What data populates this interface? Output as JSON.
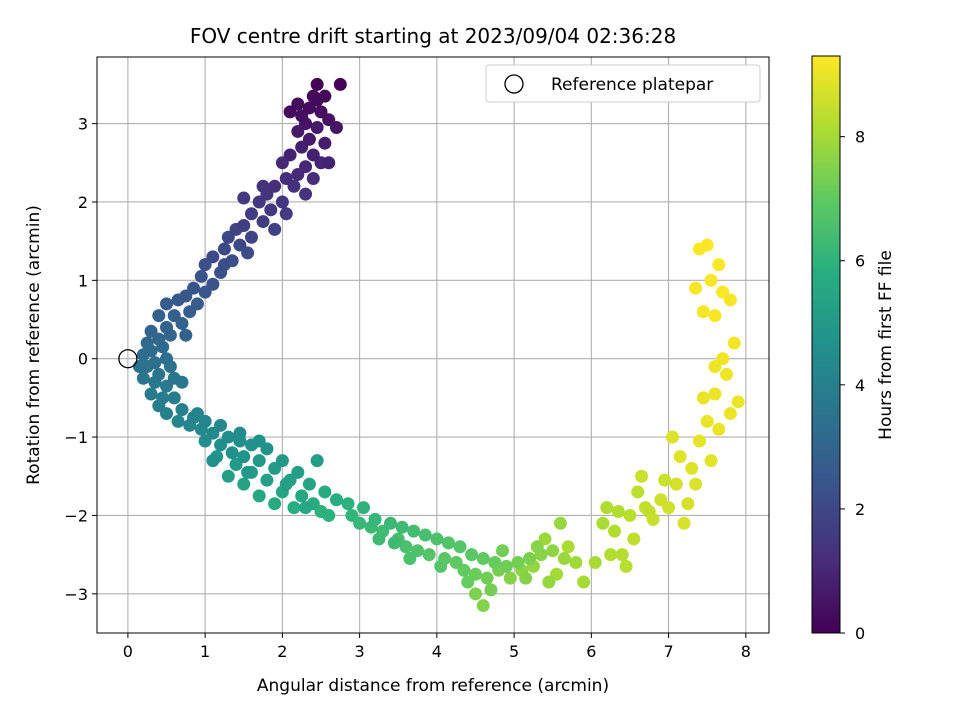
{
  "chart_data": {
    "type": "scatter",
    "title": "FOV centre drift starting at 2023/09/04 02:36:28",
    "xlabel": "Angular distance from reference (arcmin)",
    "ylabel": "Rotation from reference (arcmin)",
    "colorbar_label": "Hours from first FF file",
    "xlim": [
      -0.4,
      8.3
    ],
    "ylim": [
      -3.5,
      3.85
    ],
    "colorbar_range": [
      0,
      9.3
    ],
    "x_ticks": [
      0,
      1,
      2,
      3,
      4,
      5,
      6,
      7,
      8
    ],
    "y_ticks": [
      -3,
      -2,
      -1,
      0,
      1,
      2,
      3
    ],
    "colorbar_ticks": [
      0,
      2,
      4,
      6,
      8
    ],
    "grid": true,
    "colormap": "viridis",
    "legend": {
      "position": "top-right",
      "entries": [
        "Reference platepar"
      ]
    },
    "reference_point": {
      "x": 0,
      "y": 0,
      "marker": "open-circle",
      "color": "#000000"
    },
    "series": [
      {
        "points": [
          [
            2.75,
            3.5,
            0.05
          ],
          [
            2.45,
            3.5,
            0.1
          ],
          [
            2.4,
            3.35,
            0.15
          ],
          [
            2.55,
            3.35,
            0.2
          ],
          [
            2.2,
            3.25,
            0.25
          ],
          [
            2.35,
            3.2,
            0.3
          ],
          [
            2.5,
            3.15,
            0.35
          ],
          [
            2.25,
            3.1,
            0.4
          ],
          [
            2.6,
            3.05,
            0.45
          ],
          [
            2.3,
            3.0,
            0.5
          ],
          [
            2.7,
            2.95,
            0.55
          ],
          [
            2.45,
            2.95,
            0.6
          ],
          [
            2.2,
            2.9,
            0.65
          ],
          [
            2.35,
            2.8,
            0.7
          ],
          [
            2.55,
            2.75,
            0.75
          ],
          [
            2.25,
            2.7,
            0.8
          ],
          [
            2.4,
            2.6,
            0.85
          ],
          [
            2.1,
            2.6,
            0.9
          ],
          [
            2.5,
            2.5,
            0.95
          ],
          [
            2.3,
            2.45,
            1.0
          ],
          [
            2.0,
            2.5,
            1.05
          ],
          [
            2.2,
            2.35,
            1.1
          ],
          [
            2.4,
            2.3,
            1.15
          ],
          [
            2.05,
            2.3,
            1.2
          ],
          [
            1.9,
            2.2,
            1.25
          ],
          [
            2.15,
            2.2,
            1.3
          ],
          [
            2.3,
            2.1,
            1.35
          ],
          [
            1.8,
            2.1,
            1.4
          ],
          [
            2.0,
            2.0,
            1.45
          ],
          [
            1.7,
            2.0,
            1.5
          ],
          [
            1.85,
            1.9,
            1.55
          ],
          [
            2.05,
            1.85,
            1.6
          ],
          [
            1.6,
            1.85,
            1.65
          ],
          [
            1.75,
            1.75,
            1.7
          ],
          [
            1.5,
            1.7,
            1.75
          ],
          [
            1.9,
            1.65,
            1.8
          ],
          [
            1.4,
            1.65,
            1.85
          ],
          [
            1.6,
            1.55,
            1.9
          ],
          [
            1.3,
            1.55,
            1.95
          ],
          [
            1.45,
            1.45,
            2.0
          ],
          [
            1.25,
            1.4,
            2.05
          ],
          [
            1.55,
            1.35,
            2.1
          ],
          [
            1.1,
            1.3,
            2.15
          ],
          [
            1.35,
            1.25,
            2.2
          ],
          [
            1.0,
            1.2,
            2.25
          ],
          [
            1.2,
            1.1,
            2.3
          ],
          [
            0.95,
            1.05,
            2.35
          ],
          [
            1.1,
            0.95,
            2.4
          ],
          [
            0.85,
            0.9,
            2.45
          ],
          [
            1.0,
            0.85,
            2.5
          ],
          [
            0.75,
            0.8,
            2.55
          ],
          [
            0.65,
            0.75,
            2.6
          ],
          [
            0.9,
            0.7,
            2.65
          ],
          [
            0.5,
            0.7,
            2.7
          ],
          [
            0.8,
            0.6,
            2.75
          ],
          [
            0.6,
            0.55,
            2.8
          ],
          [
            0.4,
            0.55,
            2.85
          ],
          [
            0.7,
            0.45,
            2.9
          ],
          [
            0.5,
            0.4,
            2.95
          ],
          [
            0.3,
            0.35,
            3.0
          ],
          [
            0.55,
            0.3,
            3.05
          ],
          [
            0.4,
            0.25,
            3.1
          ],
          [
            0.25,
            0.2,
            3.15
          ],
          [
            0.45,
            0.15,
            3.2
          ],
          [
            0.3,
            0.1,
            3.25
          ],
          [
            0.2,
            0.05,
            3.3
          ],
          [
            0.5,
            0.0,
            3.35
          ],
          [
            0.35,
            -0.05,
            3.4
          ],
          [
            0.25,
            -0.1,
            3.45
          ],
          [
            0.55,
            -0.1,
            3.5
          ],
          [
            0.4,
            -0.2,
            3.55
          ],
          [
            0.2,
            -0.25,
            3.6
          ],
          [
            0.6,
            -0.25,
            3.65
          ],
          [
            0.35,
            -0.3,
            3.7
          ],
          [
            0.5,
            -0.35,
            3.75
          ],
          [
            0.3,
            -0.45,
            3.8
          ],
          [
            0.45,
            -0.5,
            3.85
          ],
          [
            0.6,
            -0.5,
            3.9
          ],
          [
            0.4,
            -0.6,
            3.95
          ],
          [
            0.7,
            -0.65,
            4.0
          ],
          [
            0.5,
            -0.7,
            4.05
          ],
          [
            0.85,
            -0.75,
            4.1
          ],
          [
            0.65,
            -0.8,
            4.15
          ],
          [
            1.0,
            -0.8,
            4.2
          ],
          [
            0.8,
            -0.85,
            4.25
          ],
          [
            1.2,
            -0.85,
            4.3
          ],
          [
            0.95,
            -0.9,
            4.35
          ],
          [
            1.1,
            -0.95,
            4.4
          ],
          [
            1.3,
            -1.0,
            4.45
          ],
          [
            1.0,
            -1.05,
            4.5
          ],
          [
            1.45,
            -1.05,
            4.55
          ],
          [
            1.2,
            -1.1,
            4.6
          ],
          [
            1.6,
            -1.1,
            4.65
          ],
          [
            1.35,
            -1.2,
            4.7
          ],
          [
            1.8,
            -1.15,
            4.75
          ],
          [
            1.5,
            -1.25,
            4.8
          ],
          [
            1.15,
            -1.25,
            4.85
          ],
          [
            1.7,
            -1.3,
            4.9
          ],
          [
            2.0,
            -1.3,
            4.95
          ],
          [
            1.4,
            -1.35,
            5.0
          ],
          [
            1.9,
            -1.4,
            5.05
          ],
          [
            1.6,
            -1.45,
            5.1
          ],
          [
            2.2,
            -1.45,
            5.15
          ],
          [
            1.3,
            -1.5,
            5.2
          ],
          [
            1.8,
            -1.55,
            5.25
          ],
          [
            2.1,
            -1.55,
            5.3
          ],
          [
            1.5,
            -1.6,
            5.35
          ],
          [
            2.35,
            -1.6,
            5.4
          ],
          [
            2.0,
            -1.7,
            5.45
          ],
          [
            1.7,
            -1.75,
            5.5
          ],
          [
            2.25,
            -1.75,
            5.55
          ],
          [
            2.55,
            -1.7,
            5.6
          ],
          [
            1.9,
            -1.85,
            5.65
          ],
          [
            2.4,
            -1.85,
            5.7
          ],
          [
            2.7,
            -1.8,
            5.75
          ],
          [
            2.15,
            -1.9,
            5.8
          ],
          [
            2.85,
            -1.85,
            5.9
          ],
          [
            2.5,
            -1.95,
            5.95
          ],
          [
            3.05,
            -1.9,
            6.0
          ],
          [
            2.9,
            -2.0,
            6.05
          ],
          [
            3.2,
            -2.05,
            6.1
          ],
          [
            3.0,
            -2.1,
            6.15
          ],
          [
            3.4,
            -2.1,
            6.2
          ],
          [
            3.15,
            -2.15,
            6.25
          ],
          [
            3.55,
            -2.15,
            6.3
          ],
          [
            3.3,
            -2.2,
            6.35
          ],
          [
            3.7,
            -2.2,
            6.4
          ],
          [
            3.5,
            -2.3,
            6.45
          ],
          [
            3.85,
            -2.25,
            6.5
          ],
          [
            3.6,
            -2.4,
            6.55
          ],
          [
            4.0,
            -2.3,
            6.6
          ],
          [
            3.75,
            -2.45,
            6.65
          ],
          [
            4.15,
            -2.35,
            6.7
          ],
          [
            3.9,
            -2.5,
            6.75
          ],
          [
            4.3,
            -2.4,
            6.8
          ],
          [
            4.1,
            -2.55,
            6.85
          ],
          [
            4.45,
            -2.5,
            6.9
          ],
          [
            4.25,
            -2.6,
            6.95
          ],
          [
            4.6,
            -2.55,
            7.0
          ],
          [
            4.35,
            -2.7,
            7.05
          ],
          [
            4.75,
            -2.6,
            7.1
          ],
          [
            4.5,
            -2.75,
            7.15
          ],
          [
            4.9,
            -2.65,
            7.2
          ],
          [
            4.65,
            -2.8,
            7.25
          ],
          [
            5.05,
            -2.6,
            7.3
          ],
          [
            4.8,
            -2.7,
            7.35
          ],
          [
            5.2,
            -2.55,
            7.4
          ],
          [
            4.5,
            -3.0,
            7.45
          ],
          [
            4.6,
            -3.15,
            7.5
          ],
          [
            4.95,
            -2.8,
            7.55
          ],
          [
            5.35,
            -2.5,
            7.6
          ],
          [
            5.1,
            -2.7,
            7.65
          ],
          [
            5.5,
            -2.45,
            7.7
          ],
          [
            5.25,
            -2.65,
            7.75
          ],
          [
            5.45,
            -2.85,
            7.8
          ],
          [
            5.65,
            -2.55,
            7.85
          ],
          [
            5.4,
            -2.3,
            7.9
          ],
          [
            5.8,
            -2.6,
            7.95
          ],
          [
            5.55,
            -2.75,
            8.0
          ],
          [
            5.9,
            -2.85,
            8.05
          ],
          [
            5.7,
            -2.4,
            8.1
          ],
          [
            6.2,
            -1.9,
            8.15
          ],
          [
            6.3,
            -2.2,
            8.2
          ],
          [
            6.4,
            -2.5,
            8.25
          ],
          [
            6.5,
            -2.0,
            8.3
          ],
          [
            6.6,
            -1.7,
            8.35
          ],
          [
            6.55,
            -2.3,
            8.4
          ],
          [
            6.7,
            -1.9,
            8.45
          ],
          [
            6.8,
            -2.05,
            8.5
          ],
          [
            6.65,
            -1.5,
            8.55
          ],
          [
            6.9,
            -1.8,
            8.6
          ],
          [
            7.0,
            -1.9,
            8.65
          ],
          [
            7.1,
            -1.6,
            8.7
          ],
          [
            7.2,
            -2.1,
            8.75
          ],
          [
            7.05,
            -1.0,
            8.8
          ],
          [
            7.3,
            -1.4,
            8.85
          ],
          [
            7.15,
            -1.25,
            8.9
          ],
          [
            7.4,
            -1.05,
            8.95
          ],
          [
            7.5,
            -0.8,
            9.0
          ],
          [
            7.6,
            -0.45,
            9.05
          ],
          [
            7.7,
            0.0,
            9.1
          ],
          [
            7.45,
            0.6,
            9.15
          ],
          [
            7.55,
            1.0,
            9.2
          ],
          [
            7.4,
            1.4,
            9.25
          ],
          [
            7.5,
            1.45,
            9.3
          ],
          [
            1.1,
            -1.3,
            4.6
          ],
          [
            0.9,
            -0.7,
            4.2
          ],
          [
            1.55,
            -1.45,
            4.9
          ],
          [
            2.05,
            -1.6,
            5.2
          ],
          [
            2.3,
            -1.9,
            5.5
          ],
          [
            2.6,
            -2.0,
            5.9
          ],
          [
            3.45,
            -2.35,
            6.3
          ],
          [
            4.05,
            -2.65,
            6.8
          ],
          [
            4.4,
            -2.85,
            7.1
          ],
          [
            4.7,
            -2.95,
            7.3
          ],
          [
            5.15,
            -2.8,
            7.55
          ],
          [
            6.05,
            -2.6,
            8.05
          ],
          [
            6.25,
            -2.5,
            8.2
          ],
          [
            6.45,
            -2.65,
            8.3
          ],
          [
            6.75,
            -1.95,
            8.45
          ],
          [
            7.25,
            -1.85,
            8.7
          ],
          [
            7.35,
            -1.6,
            8.8
          ],
          [
            7.55,
            -1.3,
            8.9
          ],
          [
            7.65,
            -0.9,
            9.0
          ],
          [
            7.8,
            -0.7,
            9.05
          ],
          [
            7.9,
            -0.55,
            9.05
          ],
          [
            7.75,
            -0.2,
            9.1
          ],
          [
            7.85,
            0.2,
            9.15
          ],
          [
            7.6,
            0.55,
            9.2
          ],
          [
            7.7,
            0.85,
            9.25
          ],
          [
            7.8,
            0.75,
            9.2
          ],
          [
            7.65,
            1.2,
            9.25
          ],
          [
            7.35,
            0.9,
            9.2
          ],
          [
            1.75,
            2.2,
            1.35
          ],
          [
            1.5,
            2.05,
            1.5
          ],
          [
            2.45,
            3.3,
            0.2
          ],
          [
            2.1,
            3.15,
            0.3
          ],
          [
            2.6,
            2.5,
            0.9
          ],
          [
            1.25,
            1.2,
            2.2
          ],
          [
            0.75,
            0.3,
            2.95
          ],
          [
            0.15,
            -0.1,
            3.45
          ],
          [
            0.7,
            -0.3,
            3.7
          ],
          [
            1.45,
            -0.95,
            4.5
          ],
          [
            1.7,
            -1.05,
            4.7
          ],
          [
            2.45,
            -1.3,
            5.15
          ],
          [
            3.25,
            -2.3,
            6.3
          ],
          [
            3.65,
            -2.55,
            6.6
          ],
          [
            4.85,
            -2.45,
            7.25
          ],
          [
            5.3,
            -2.4,
            7.6
          ],
          [
            5.6,
            -2.1,
            7.8
          ],
          [
            6.15,
            -2.1,
            8.1
          ],
          [
            6.35,
            -1.95,
            8.2
          ],
          [
            6.95,
            -1.55,
            8.55
          ],
          [
            7.45,
            -0.5,
            9.0
          ],
          [
            7.6,
            -0.1,
            9.1
          ]
        ]
      }
    ]
  }
}
